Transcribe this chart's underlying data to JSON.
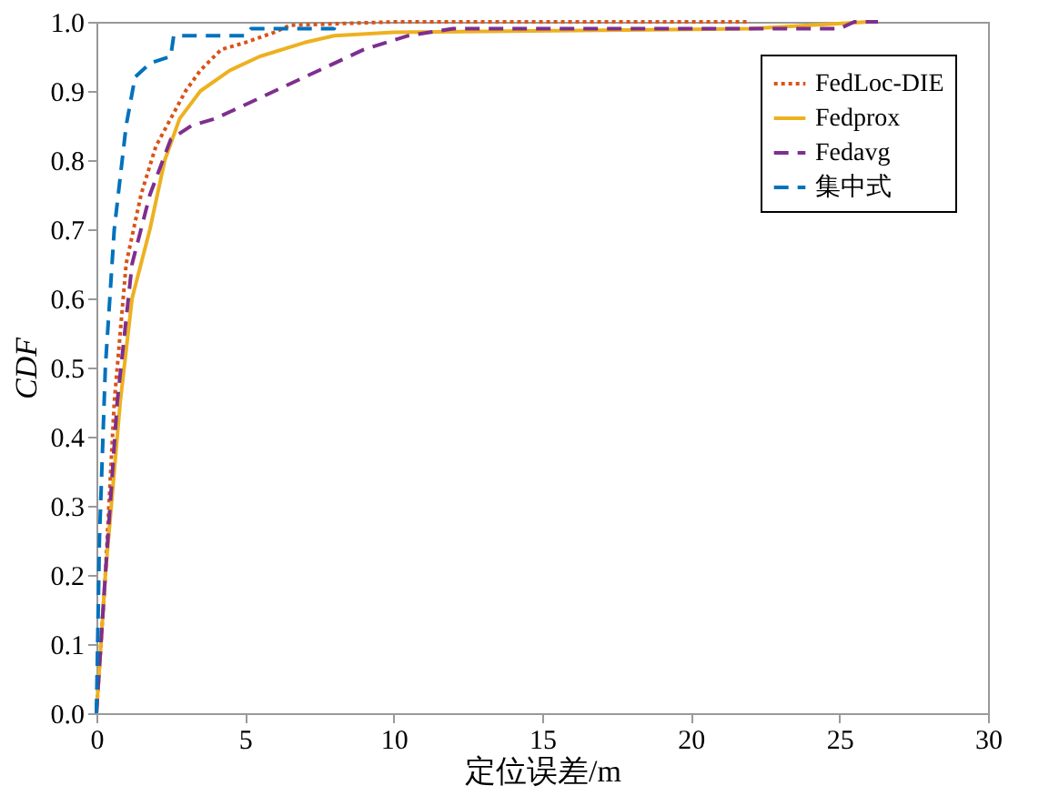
{
  "chart_data": {
    "type": "line",
    "xlabel": "定位误差/m",
    "ylabel": "CDF",
    "xlim": [
      0,
      30
    ],
    "xticks": [
      0,
      5,
      10,
      15,
      20,
      25,
      30
    ],
    "ylim": [
      0,
      1.0
    ],
    "yticks": [
      {
        "value": 0,
        "label": "0.0"
      },
      0.1,
      0.2,
      0.3,
      0.4,
      0.5,
      0.6,
      0.7,
      0.8,
      0.9,
      {
        "value": 1.0,
        "label": "1.0"
      }
    ],
    "grid": false,
    "legend": "top right",
    "marker": "none",
    "series": [
      {
        "name": "FedLoc-DIE",
        "color": "#d95319",
        "line_style": "dotted",
        "x": [
          0,
          0.3,
          0.6,
          1.0,
          1.5,
          2.0,
          2.5,
          3.0,
          3.5,
          4.2,
          5.0,
          6.0,
          6.5,
          10,
          22
        ],
        "values": [
          0,
          0.2,
          0.45,
          0.65,
          0.75,
          0.82,
          0.86,
          0.9,
          0.93,
          0.96,
          0.97,
          0.985,
          0.995,
          1.0,
          1.0
        ]
      },
      {
        "name": "Fedprox",
        "color": "#edb120",
        "line_style": "solid",
        "x": [
          0,
          0.3,
          0.8,
          1.2,
          1.8,
          2.3,
          2.8,
          3.5,
          4.5,
          5.5,
          7,
          8,
          10,
          22,
          26
        ],
        "values": [
          0,
          0.2,
          0.45,
          0.6,
          0.7,
          0.8,
          0.86,
          0.9,
          0.93,
          0.95,
          0.97,
          0.98,
          0.985,
          0.99,
          1.0
        ]
      },
      {
        "name": "Fedavg",
        "color": "#7e2f8e",
        "line_style": "dashed",
        "x": [
          0,
          0.3,
          0.7,
          1.2,
          1.8,
          2.5,
          3.2,
          4,
          5,
          6,
          7.5,
          9,
          10.5,
          12,
          25,
          25.5,
          26.3
        ],
        "values": [
          0,
          0.2,
          0.45,
          0.65,
          0.75,
          0.83,
          0.85,
          0.86,
          0.88,
          0.9,
          0.93,
          0.96,
          0.98,
          0.99,
          0.99,
          1.0,
          1.0
        ]
      },
      {
        "name": "集中式",
        "color": "#0072bd",
        "line_style": "dashed",
        "x": [
          0,
          0.1,
          0.3,
          0.6,
          1.0,
          1.3,
          1.8,
          2.5,
          2.6,
          5.0,
          5.2,
          8.0,
          8.0
        ],
        "values": [
          0,
          0.25,
          0.5,
          0.7,
          0.85,
          0.92,
          0.94,
          0.95,
          0.98,
          0.98,
          0.99,
          0.99,
          1.0
        ]
      }
    ]
  }
}
